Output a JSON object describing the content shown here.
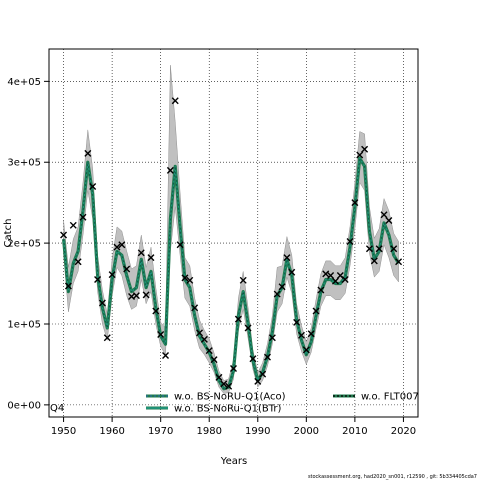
{
  "chart_data": {
    "type": "line",
    "title": "",
    "xlabel": "Years",
    "ylabel": "Catch",
    "corner_label": "Q4",
    "footer": "stockassessment.org, had2020_sn001, r12590 , git: 5b334405cda7",
    "xlim": [
      1947,
      2023
    ],
    "ylim": [
      -15000,
      440000
    ],
    "x_ticks": [
      1950,
      1960,
      1970,
      1980,
      1990,
      2000,
      2010,
      2020
    ],
    "x_tick_labels": [
      "1950",
      "1960",
      "1970",
      "1980",
      "1990",
      "2000",
      "2010",
      "2020"
    ],
    "y_ticks": [
      0,
      100000,
      200000,
      300000,
      400000
    ],
    "y_tick_labels": [
      "0e+00",
      "1e+05",
      "2e+05",
      "3e+05",
      "4e+05"
    ],
    "grid": true,
    "legend_position": "bottom",
    "legend": [
      {
        "label": "w.o. BS-NoRU-Q1(Aco)",
        "color": "#2b6ea0",
        "style": "dashed"
      },
      {
        "label": "w.o. BS-NoRu-Q1(BTr)",
        "color": "#20a090",
        "style": "solid"
      },
      {
        "label": "w.o. FLT007",
        "color": "#000000",
        "style": "dashed"
      }
    ],
    "colors": {
      "fit": "#1f7a4d",
      "band": "#bdbdbd",
      "observation": "#000000"
    },
    "fit_series": {
      "name": "",
      "x": [
        1950,
        1951,
        1952,
        1953,
        1954,
        1955,
        1956,
        1957,
        1958,
        1959,
        1960,
        1961,
        1962,
        1963,
        1964,
        1965,
        1966,
        1967,
        1968,
        1969,
        1970,
        1971,
        1972,
        1973,
        1974,
        1975,
        1976,
        1977,
        1978,
        1979,
        1980,
        1981,
        1982,
        1983,
        1984,
        1985,
        1986,
        1987,
        1988,
        1989,
        1990,
        1991,
        1992,
        1993,
        1994,
        1995,
        1996,
        1997,
        1998,
        1999,
        2000,
        2001,
        2002,
        2003,
        2004,
        2005,
        2006,
        2007,
        2008,
        2009,
        2010,
        2011,
        2012,
        2013,
        2014,
        2015,
        2016,
        2017,
        2018,
        2019
      ],
      "y": [
        205000,
        140000,
        175000,
        190000,
        240000,
        300000,
        260000,
        160000,
        120000,
        95000,
        155000,
        190000,
        185000,
        160000,
        140000,
        145000,
        180000,
        145000,
        165000,
        120000,
        85000,
        75000,
        230000,
        295000,
        220000,
        155000,
        145000,
        110000,
        85000,
        75000,
        65000,
        50000,
        30000,
        20000,
        22000,
        42000,
        110000,
        140000,
        100000,
        55000,
        30000,
        40000,
        60000,
        90000,
        135000,
        145000,
        180000,
        160000,
        105000,
        80000,
        62000,
        78000,
        110000,
        140000,
        155000,
        155000,
        150000,
        150000,
        158000,
        195000,
        245000,
        305000,
        295000,
        215000,
        180000,
        190000,
        225000,
        210000,
        185000,
        175000
      ],
      "lower": [
        185000,
        115000,
        150000,
        165000,
        210000,
        265000,
        230000,
        140000,
        100000,
        80000,
        135000,
        170000,
        160000,
        135000,
        118000,
        122000,
        155000,
        125000,
        140000,
        100000,
        72000,
        62000,
        190000,
        245000,
        185000,
        132000,
        122000,
        92000,
        70000,
        62000,
        52000,
        40000,
        22000,
        14000,
        15000,
        32000,
        92000,
        118000,
        82000,
        44000,
        22000,
        30000,
        48000,
        75000,
        115000,
        125000,
        158000,
        138000,
        88000,
        66000,
        50000,
        65000,
        94000,
        122000,
        135000,
        135000,
        130000,
        130000,
        138000,
        172000,
        218000,
        275000,
        265000,
        188000,
        158000,
        165000,
        198000,
        182000,
        160000,
        152000
      ],
      "upper": [
        228000,
        170000,
        205000,
        220000,
        275000,
        340000,
        292000,
        185000,
        142000,
        112000,
        180000,
        220000,
        215000,
        190000,
        168000,
        172000,
        210000,
        170000,
        195000,
        145000,
        102000,
        95000,
        420000,
        350000,
        262000,
        182000,
        172000,
        132000,
        105000,
        92000,
        82000,
        64000,
        42000,
        30000,
        32000,
        56000,
        132000,
        165000,
        120000,
        68000,
        40000,
        52000,
        76000,
        110000,
        170000,
        172000,
        208000,
        185000,
        125000,
        98000,
        78000,
        95000,
        130000,
        162000,
        178000,
        178000,
        172000,
        172000,
        182000,
        220000,
        275000,
        338000,
        335000,
        245000,
        206000,
        218000,
        255000,
        240000,
        212000,
        202000
      ]
    },
    "observations": {
      "name": "",
      "x": [
        1950,
        1951,
        1952,
        1953,
        1954,
        1955,
        1956,
        1957,
        1958,
        1959,
        1960,
        1961,
        1962,
        1963,
        1964,
        1965,
        1966,
        1967,
        1968,
        1969,
        1970,
        1971,
        1972,
        1973,
        1974,
        1975,
        1976,
        1977,
        1978,
        1979,
        1980,
        1981,
        1982,
        1983,
        1984,
        1985,
        1986,
        1987,
        1988,
        1989,
        1990,
        1991,
        1992,
        1993,
        1994,
        1995,
        1996,
        1997,
        1998,
        1999,
        2000,
        2001,
        2002,
        2003,
        2004,
        2005,
        2006,
        2007,
        2008,
        2009,
        2010,
        2011,
        2012,
        2013,
        2014,
        2015,
        2016,
        2017,
        2018,
        2019
      ],
      "y": [
        210000,
        147000,
        222000,
        177000,
        232000,
        311000,
        270000,
        155000,
        126000,
        83000,
        161000,
        195000,
        198000,
        168000,
        134000,
        135000,
        188000,
        136000,
        182000,
        116000,
        87000,
        61000,
        290000,
        376000,
        198000,
        157000,
        154000,
        120000,
        89000,
        81000,
        67000,
        56000,
        34000,
        26000,
        23000,
        45000,
        106000,
        154000,
        95000,
        57000,
        29000,
        38000,
        59000,
        83000,
        137000,
        146000,
        182000,
        164000,
        102000,
        86000,
        68000,
        88000,
        116000,
        142000,
        162000,
        160000,
        153000,
        160000,
        155000,
        202000,
        250000,
        309000,
        316000,
        193000,
        178000,
        193000,
        235000,
        228000,
        193000,
        177000
      ]
    }
  }
}
